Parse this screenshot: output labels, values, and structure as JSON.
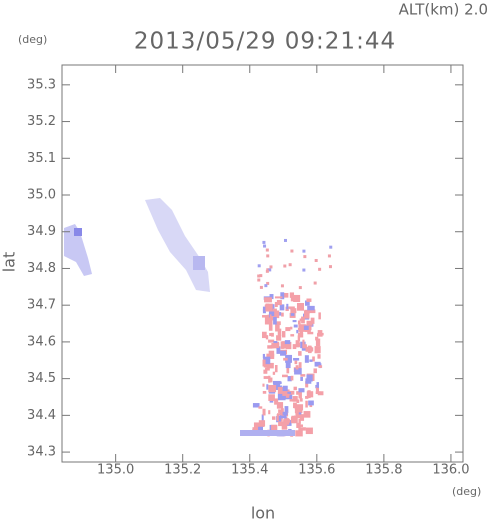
{
  "chart_data": {
    "type": "map",
    "title": "2013/05/29 09:21:44",
    "subtitle": "ALT(km) 2.0",
    "x_label": "lon",
    "y_label": "lat",
    "x_unit": "(deg)",
    "y_unit": "(deg)",
    "xlim": [
      134.84,
      136.036
    ],
    "ylim": [
      34.273,
      35.354
    ],
    "xticks": [
      {
        "value": 135,
        "label": "135.0"
      },
      135.2,
      135.4,
      135.6,
      135.8,
      {
        "value": 136,
        "label": "136.0"
      }
    ],
    "yticks": [
      34.3,
      34.4,
      34.5,
      34.6,
      34.7,
      34.8,
      34.9,
      {
        "value": 35,
        "label": "35.0"
      },
      35.1,
      35.2,
      35.3
    ]
  }
}
